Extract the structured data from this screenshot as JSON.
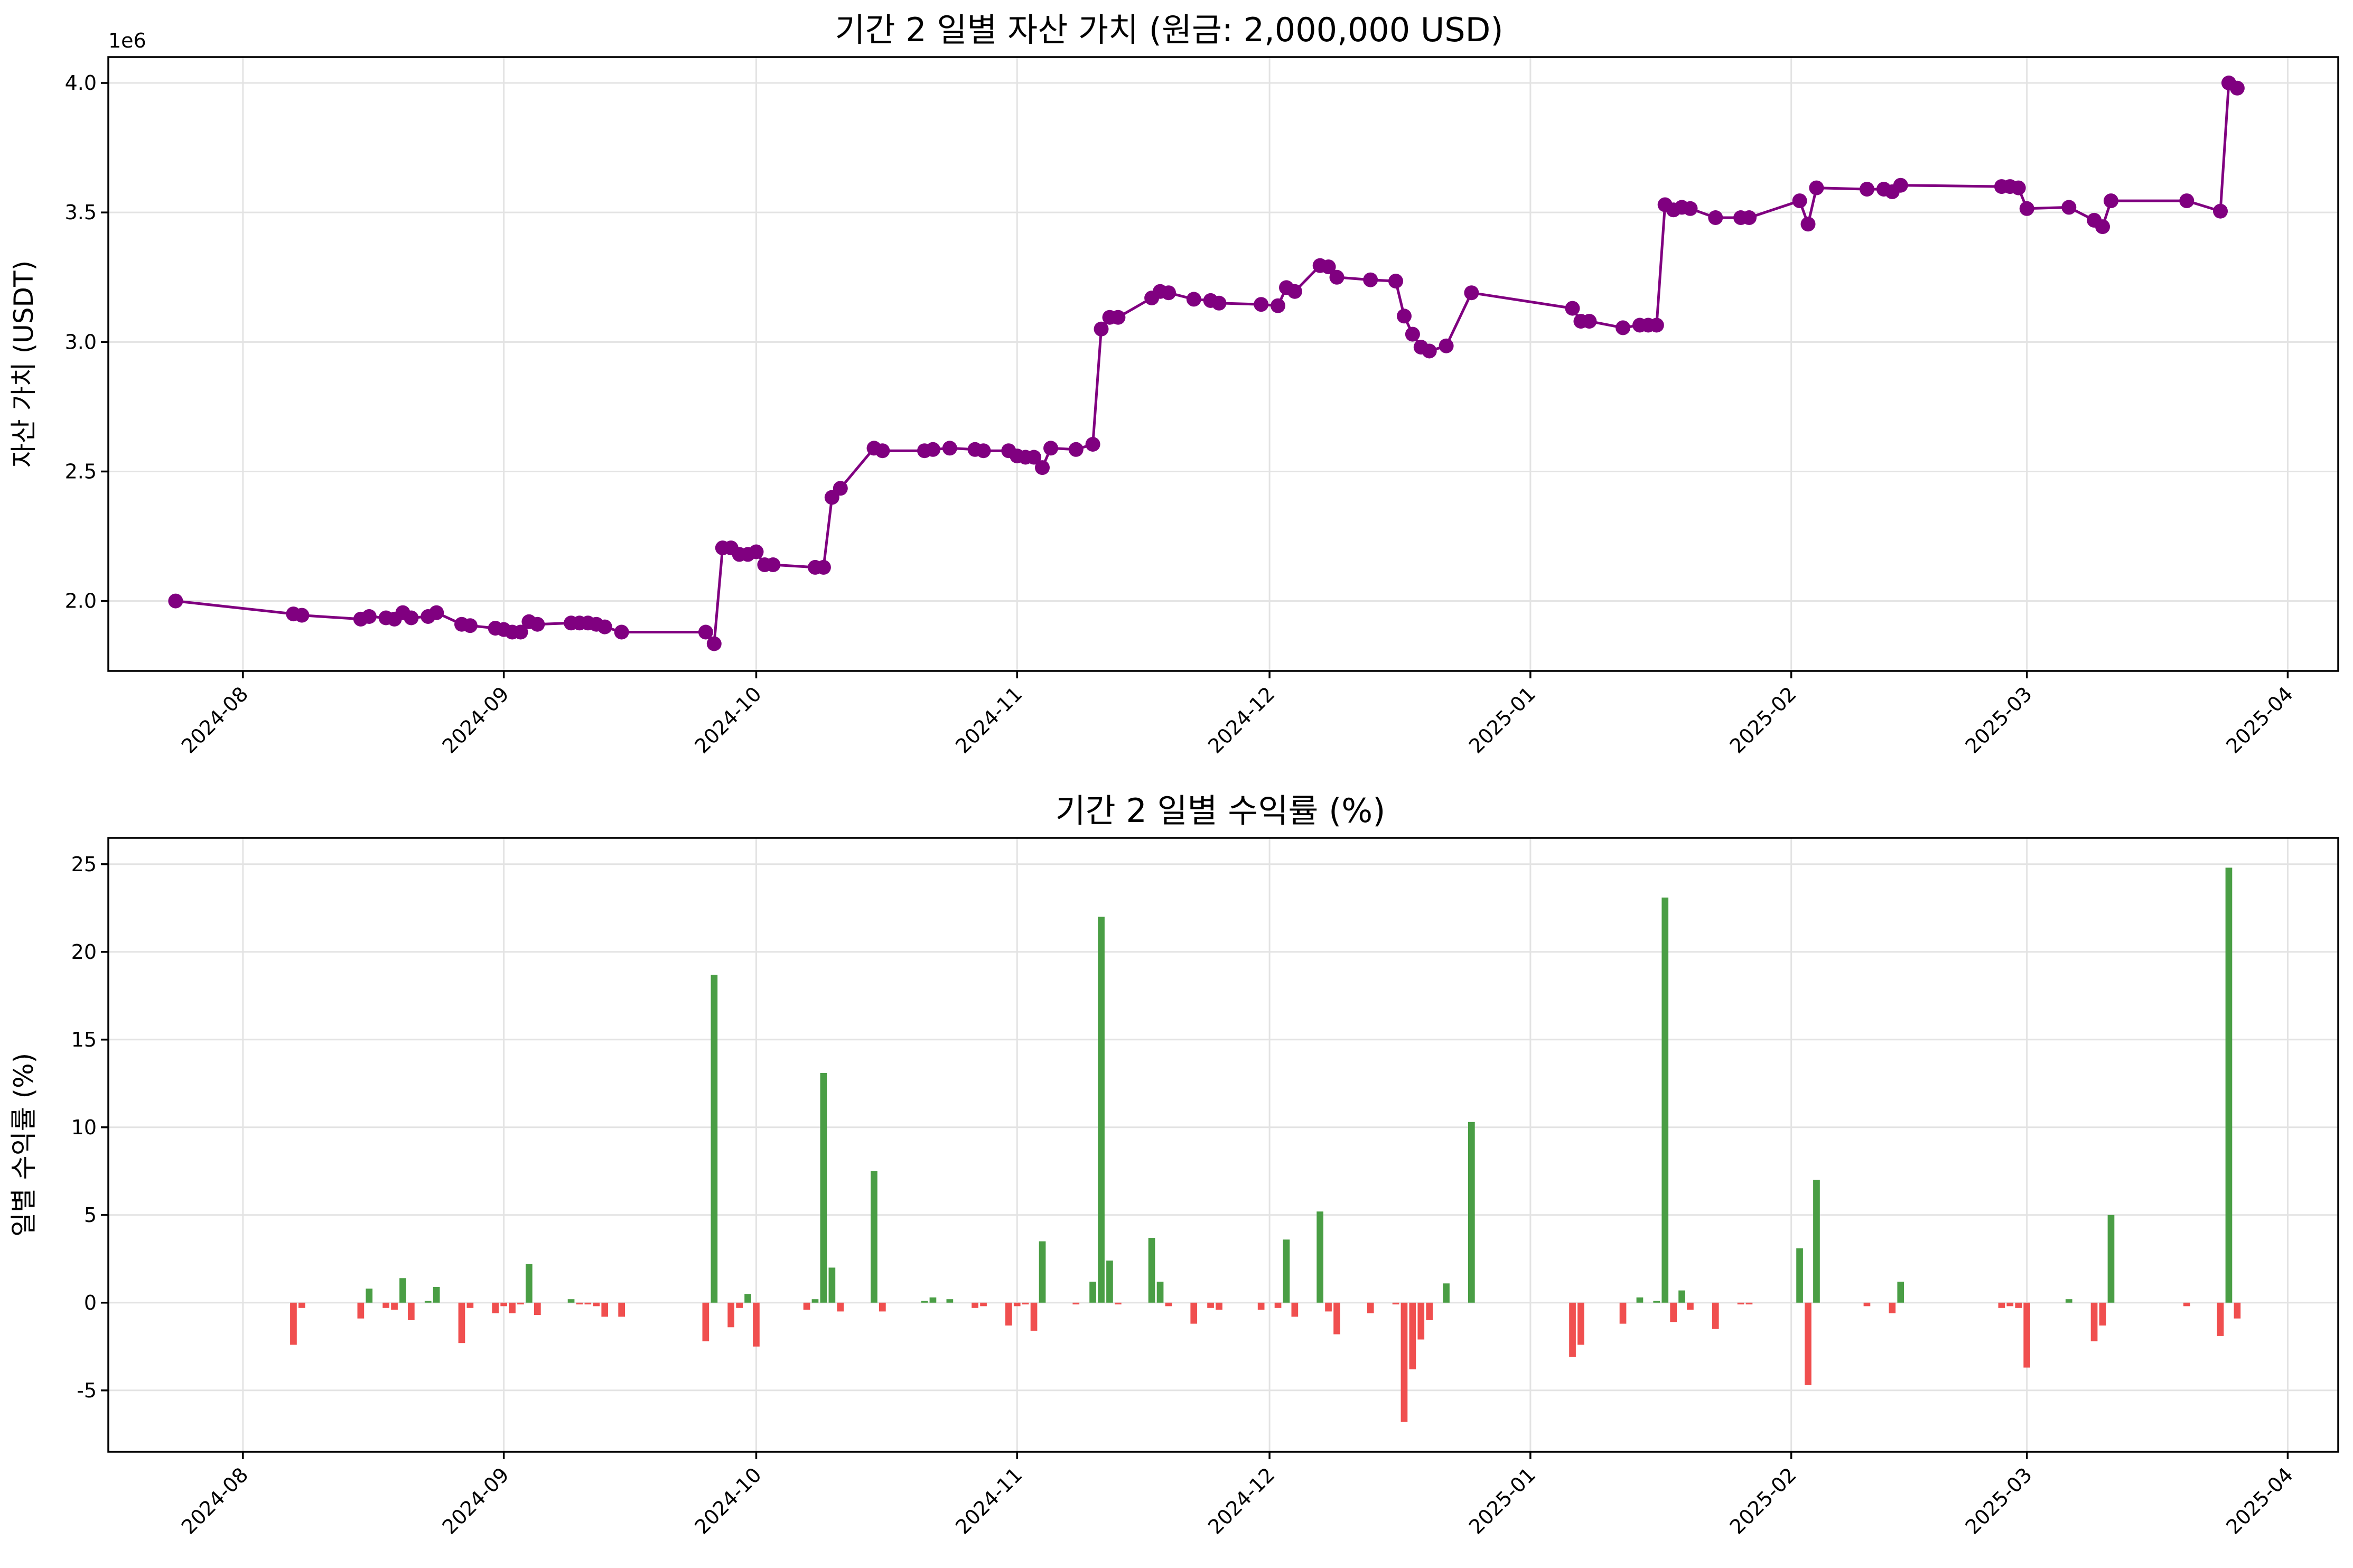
{
  "colors": {
    "line": "#800080",
    "positive": "#4a9e45",
    "negative": "#f04f4f"
  },
  "chart_data": [
    {
      "type": "line",
      "title": "기간 2 일별 자산 가치 (원금: 2,000,000 USD)",
      "ylabel": "자산 가치 (USDT)",
      "xlabel": "",
      "offset_label": "1e6",
      "x_range": [
        "2024-07-16",
        "2025-04-07"
      ],
      "ylim": [
        1.73,
        4.1
      ],
      "yticks": [
        2.0,
        2.5,
        3.0,
        3.5,
        4.0
      ],
      "ytick_labels": [
        "2.0",
        "2.5",
        "3.0",
        "3.5",
        "4.0"
      ],
      "xticks": [
        "2024-08-01",
        "2024-09-01",
        "2024-10-01",
        "2024-11-01",
        "2024-12-01",
        "2025-01-01",
        "2025-02-01",
        "2025-03-01",
        "2025-04-01"
      ],
      "xtick_labels": [
        "2024-08",
        "2024-09",
        "2024-10",
        "2024-11",
        "2024-12",
        "2025-01",
        "2025-02",
        "2025-03",
        "2025-04"
      ],
      "grid": true,
      "points": [
        [
          "2024-07-24",
          2.0
        ],
        [
          "2024-08-07",
          1.95
        ],
        [
          "2024-08-08",
          1.945
        ],
        [
          "2024-08-15",
          1.93
        ],
        [
          "2024-08-16",
          1.94
        ],
        [
          "2024-08-18",
          1.935
        ],
        [
          "2024-08-19",
          1.93
        ],
        [
          "2024-08-20",
          1.955
        ],
        [
          "2024-08-21",
          1.935
        ],
        [
          "2024-08-23",
          1.94
        ],
        [
          "2024-08-24",
          1.955
        ],
        [
          "2024-08-27",
          1.91
        ],
        [
          "2024-08-28",
          1.905
        ],
        [
          "2024-08-31",
          1.895
        ],
        [
          "2024-09-01",
          1.89
        ],
        [
          "2024-09-02",
          1.88
        ],
        [
          "2024-09-03",
          1.88
        ],
        [
          "2024-09-04",
          1.92
        ],
        [
          "2024-09-05",
          1.91
        ],
        [
          "2024-09-09",
          1.915
        ],
        [
          "2024-09-10",
          1.915
        ],
        [
          "2024-09-11",
          1.915
        ],
        [
          "2024-09-12",
          1.91
        ],
        [
          "2024-09-13",
          1.9
        ],
        [
          "2024-09-15",
          1.88
        ],
        [
          "2024-09-25",
          1.88
        ],
        [
          "2024-09-26",
          1.835
        ],
        [
          "2024-09-27",
          2.205
        ],
        [
          "2024-09-28",
          2.205
        ],
        [
          "2024-09-29",
          2.18
        ],
        [
          "2024-09-30",
          2.18
        ],
        [
          "2024-10-01",
          2.19
        ],
        [
          "2024-10-02",
          2.14
        ],
        [
          "2024-10-03",
          2.14
        ],
        [
          "2024-10-08",
          2.13
        ],
        [
          "2024-10-09",
          2.13
        ],
        [
          "2024-10-10",
          2.4
        ],
        [
          "2024-10-11",
          2.435
        ],
        [
          "2024-10-15",
          2.59
        ],
        [
          "2024-10-16",
          2.58
        ],
        [
          "2024-10-21",
          2.58
        ],
        [
          "2024-10-22",
          2.585
        ],
        [
          "2024-10-24",
          2.59
        ],
        [
          "2024-10-27",
          2.585
        ],
        [
          "2024-10-28",
          2.58
        ],
        [
          "2024-10-31",
          2.58
        ],
        [
          "2024-11-01",
          2.56
        ],
        [
          "2024-11-02",
          2.555
        ],
        [
          "2024-11-03",
          2.555
        ],
        [
          "2024-11-04",
          2.515
        ],
        [
          "2024-11-05",
          2.59
        ],
        [
          "2024-11-08",
          2.585
        ],
        [
          "2024-11-10",
          2.605
        ],
        [
          "2024-11-11",
          3.05
        ],
        [
          "2024-11-12",
          3.095
        ],
        [
          "2024-11-13",
          3.095
        ],
        [
          "2024-11-17",
          3.17
        ],
        [
          "2024-11-18",
          3.195
        ],
        [
          "2024-11-19",
          3.19
        ],
        [
          "2024-11-22",
          3.165
        ],
        [
          "2024-11-24",
          3.16
        ],
        [
          "2024-11-25",
          3.15
        ],
        [
          "2024-11-30",
          3.145
        ],
        [
          "2024-12-02",
          3.14
        ],
        [
          "2024-12-03",
          3.21
        ],
        [
          "2024-12-04",
          3.195
        ],
        [
          "2024-12-07",
          3.295
        ],
        [
          "2024-12-08",
          3.29
        ],
        [
          "2024-12-09",
          3.25
        ],
        [
          "2024-12-13",
          3.24
        ],
        [
          "2024-12-16",
          3.235
        ],
        [
          "2024-12-17",
          3.1
        ],
        [
          "2024-12-18",
          3.03
        ],
        [
          "2024-12-19",
          2.98
        ],
        [
          "2024-12-20",
          2.965
        ],
        [
          "2024-12-22",
          2.985
        ],
        [
          "2024-12-25",
          3.19
        ],
        [
          "2025-01-06",
          3.13
        ],
        [
          "2025-01-07",
          3.08
        ],
        [
          "2025-01-08",
          3.08
        ],
        [
          "2025-01-12",
          3.055
        ],
        [
          "2025-01-14",
          3.065
        ],
        [
          "2025-01-15",
          3.065
        ],
        [
          "2025-01-16",
          3.065
        ],
        [
          "2025-01-17",
          3.53
        ],
        [
          "2025-01-18",
          3.51
        ],
        [
          "2025-01-19",
          3.52
        ],
        [
          "2025-01-20",
          3.515
        ],
        [
          "2025-01-23",
          3.48
        ],
        [
          "2025-01-26",
          3.48
        ],
        [
          "2025-01-27",
          3.48
        ],
        [
          "2025-02-02",
          3.545
        ],
        [
          "2025-02-03",
          3.455
        ],
        [
          "2025-02-04",
          3.595
        ],
        [
          "2025-02-10",
          3.59
        ],
        [
          "2025-02-12",
          3.59
        ],
        [
          "2025-02-13",
          3.58
        ],
        [
          "2025-02-14",
          3.605
        ],
        [
          "2025-02-26",
          3.6
        ],
        [
          "2025-02-27",
          3.6
        ],
        [
          "2025-02-28",
          3.595
        ],
        [
          "2025-03-01",
          3.515
        ],
        [
          "2025-03-06",
          3.52
        ],
        [
          "2025-03-09",
          3.47
        ],
        [
          "2025-03-10",
          3.445
        ],
        [
          "2025-03-11",
          3.545
        ],
        [
          "2025-03-20",
          3.545
        ],
        [
          "2025-03-24",
          3.505
        ],
        [
          "2025-03-25",
          4.0
        ],
        [
          "2025-03-26",
          3.98
        ]
      ]
    },
    {
      "type": "bar",
      "title": "기간 2 일별 수익률 (%)",
      "ylabel": "일별 수익률 (%)",
      "xlabel": "",
      "x_range": [
        "2024-07-16",
        "2025-04-07"
      ],
      "ylim": [
        -8.5,
        26.5
      ],
      "yticks": [
        -5,
        0,
        5,
        10,
        15,
        20,
        25
      ],
      "ytick_labels": [
        "-5",
        "0",
        "5",
        "10",
        "15",
        "20",
        "25"
      ],
      "xticks": [
        "2024-08-01",
        "2024-09-01",
        "2024-10-01",
        "2024-11-01",
        "2024-12-01",
        "2025-01-01",
        "2025-02-01",
        "2025-03-01",
        "2025-04-01"
      ],
      "xtick_labels": [
        "2024-08",
        "2024-09",
        "2024-10",
        "2024-11",
        "2024-12",
        "2025-01",
        "2025-02",
        "2025-03",
        "2025-04"
      ],
      "grid": true,
      "bars": [
        [
          "2024-08-07",
          -2.4
        ],
        [
          "2024-08-08",
          -0.3
        ],
        [
          "2024-08-15",
          -0.9
        ],
        [
          "2024-08-16",
          0.8
        ],
        [
          "2024-08-18",
          -0.3
        ],
        [
          "2024-08-19",
          -0.4
        ],
        [
          "2024-08-20",
          1.4
        ],
        [
          "2024-08-21",
          -1.0
        ],
        [
          "2024-08-23",
          0.1
        ],
        [
          "2024-08-24",
          0.9
        ],
        [
          "2024-08-27",
          -2.3
        ],
        [
          "2024-08-28",
          -0.3
        ],
        [
          "2024-08-31",
          -0.6
        ],
        [
          "2024-09-01",
          -0.2
        ],
        [
          "2024-09-02",
          -0.6
        ],
        [
          "2024-09-03",
          -0.1
        ],
        [
          "2024-09-04",
          2.2
        ],
        [
          "2024-09-05",
          -0.7
        ],
        [
          "2024-09-09",
          0.2
        ],
        [
          "2024-09-10",
          -0.1
        ],
        [
          "2024-09-11",
          -0.1
        ],
        [
          "2024-09-12",
          -0.2
        ],
        [
          "2024-09-13",
          -0.8
        ],
        [
          "2024-09-15",
          -0.8
        ],
        [
          "2024-09-25",
          -2.2
        ],
        [
          "2024-09-26",
          18.7
        ],
        [
          "2024-09-28",
          -1.4
        ],
        [
          "2024-09-29",
          -0.3
        ],
        [
          "2024-09-30",
          0.5
        ],
        [
          "2024-10-01",
          -2.5
        ],
        [
          "2024-10-07",
          -0.4
        ],
        [
          "2024-10-08",
          0.2
        ],
        [
          "2024-10-09",
          13.1
        ],
        [
          "2024-10-10",
          2.0
        ],
        [
          "2024-10-11",
          -0.5
        ],
        [
          "2024-10-15",
          7.5
        ],
        [
          "2024-10-16",
          -0.5
        ],
        [
          "2024-10-21",
          0.1
        ],
        [
          "2024-10-22",
          0.3
        ],
        [
          "2024-10-24",
          0.2
        ],
        [
          "2024-10-27",
          -0.3
        ],
        [
          "2024-10-28",
          -0.2
        ],
        [
          "2024-10-31",
          -1.3
        ],
        [
          "2024-11-01",
          -0.2
        ],
        [
          "2024-11-02",
          -0.1
        ],
        [
          "2024-11-03",
          -1.6
        ],
        [
          "2024-11-04",
          3.5
        ],
        [
          "2024-11-08",
          -0.1
        ],
        [
          "2024-11-10",
          1.2
        ],
        [
          "2024-11-11",
          22.0
        ],
        [
          "2024-11-12",
          2.4
        ],
        [
          "2024-11-13",
          -0.1
        ],
        [
          "2024-11-17",
          3.7
        ],
        [
          "2024-11-18",
          1.2
        ],
        [
          "2024-11-19",
          -0.2
        ],
        [
          "2024-11-22",
          -1.2
        ],
        [
          "2024-11-24",
          -0.3
        ],
        [
          "2024-11-25",
          -0.4
        ],
        [
          "2024-11-30",
          -0.4
        ],
        [
          "2024-12-02",
          -0.3
        ],
        [
          "2024-12-03",
          3.6
        ],
        [
          "2024-12-04",
          -0.8
        ],
        [
          "2024-12-07",
          5.2
        ],
        [
          "2024-12-08",
          -0.5
        ],
        [
          "2024-12-09",
          -1.8
        ],
        [
          "2024-12-13",
          -0.6
        ],
        [
          "2024-12-16",
          -0.1
        ],
        [
          "2024-12-17",
          -6.8
        ],
        [
          "2024-12-18",
          -3.8
        ],
        [
          "2024-12-19",
          -2.1
        ],
        [
          "2024-12-20",
          -1.0
        ],
        [
          "2024-12-22",
          1.1
        ],
        [
          "2024-12-25",
          10.3
        ],
        [
          "2025-01-06",
          -3.1
        ],
        [
          "2025-01-07",
          -2.4
        ],
        [
          "2025-01-12",
          -1.2
        ],
        [
          "2025-01-14",
          0.3
        ],
        [
          "2025-01-16",
          0.1
        ],
        [
          "2025-01-17",
          23.1
        ],
        [
          "2025-01-18",
          -1.1
        ],
        [
          "2025-01-19",
          0.7
        ],
        [
          "2025-01-20",
          -0.4
        ],
        [
          "2025-01-23",
          -1.5
        ],
        [
          "2025-01-26",
          -0.1
        ],
        [
          "2025-01-27",
          -0.1
        ],
        [
          "2025-02-02",
          3.1
        ],
        [
          "2025-02-03",
          -4.7
        ],
        [
          "2025-02-04",
          7.0
        ],
        [
          "2025-02-10",
          -0.2
        ],
        [
          "2025-02-13",
          -0.6
        ],
        [
          "2025-02-14",
          1.2
        ],
        [
          "2025-02-26",
          -0.3
        ],
        [
          "2025-02-27",
          -0.2
        ],
        [
          "2025-02-28",
          -0.3
        ],
        [
          "2025-03-01",
          -3.7
        ],
        [
          "2025-03-06",
          0.2
        ],
        [
          "2025-03-09",
          -2.2
        ],
        [
          "2025-03-10",
          -1.3
        ],
        [
          "2025-03-11",
          5.0
        ],
        [
          "2025-03-20",
          -0.2
        ],
        [
          "2025-03-24",
          -1.9
        ],
        [
          "2025-03-25",
          24.8
        ],
        [
          "2025-03-26",
          -0.9
        ]
      ]
    }
  ]
}
